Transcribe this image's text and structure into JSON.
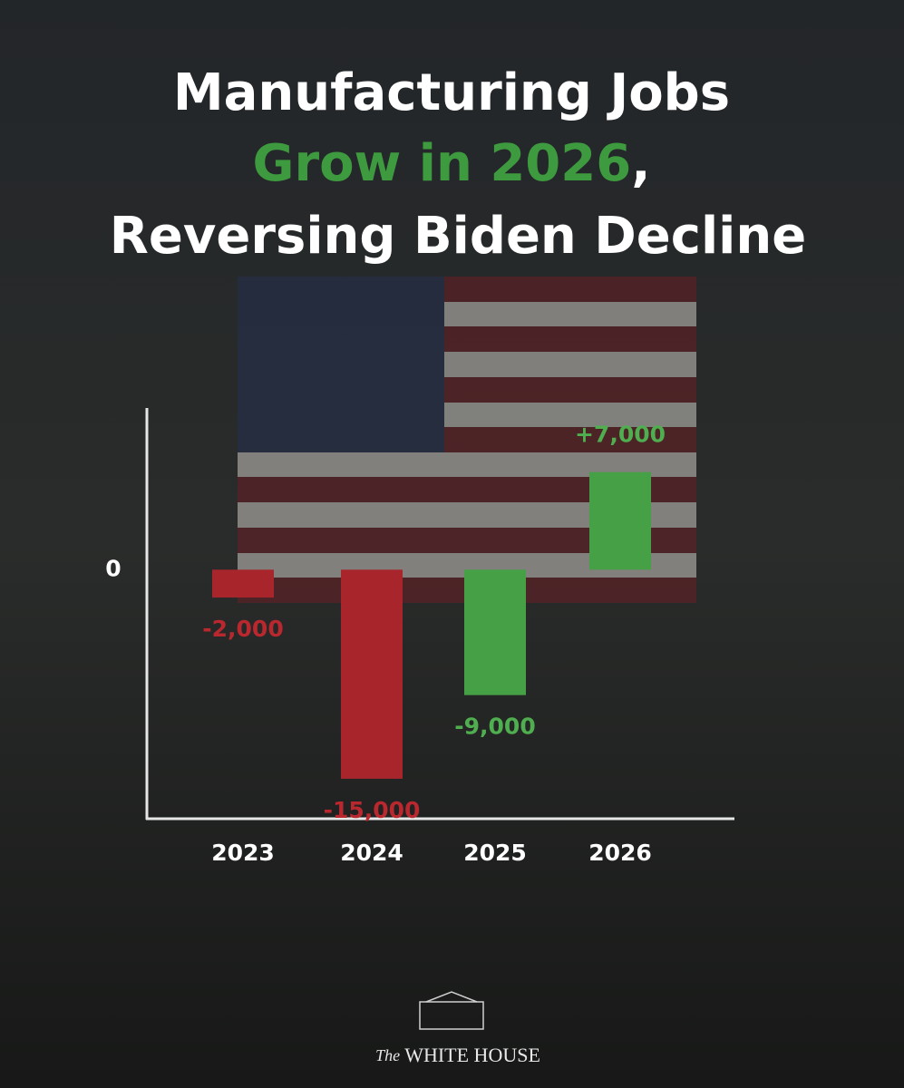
{
  "chart_data": {
    "type": "bar",
    "title": [
      "Manufacturing Jobs",
      "Grow in 2026",
      ",",
      "Reversing Biden Decline"
    ],
    "title_colors": [
      "#ffffff",
      "#3e9a3f",
      "#ffffff",
      "#ffffff"
    ],
    "categories": [
      "2023",
      "2024",
      "2025",
      "2026"
    ],
    "values": [
      -2000,
      -15000,
      -9000,
      7000
    ],
    "value_labels": [
      "-2,000",
      "-15,000",
      "-9,000",
      "+7,000"
    ],
    "colors": [
      "#a8262b",
      "#a8262b",
      "#45a046",
      "#45a046"
    ],
    "label_colors": [
      "#b8282e",
      "#b8282e",
      "#4fae4f",
      "#4fae4f"
    ],
    "ylim": [
      -18000,
      11600
    ],
    "yticks": [
      0
    ],
    "footer": [
      "The",
      "WHITE HOUSE"
    ]
  }
}
